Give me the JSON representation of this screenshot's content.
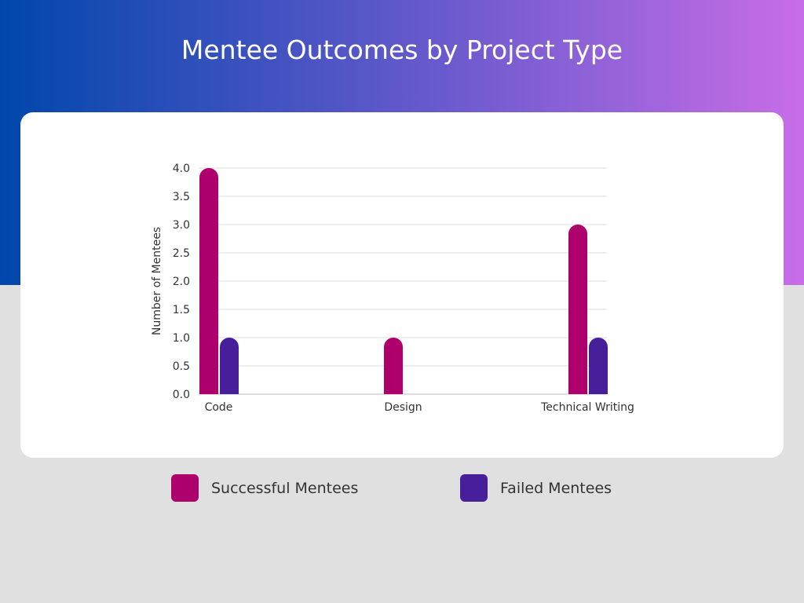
{
  "title": "Mentee Outcomes by Project Type",
  "chart_data": {
    "type": "bar",
    "title": "Mentee Outcomes by Project Type",
    "xlabel": "",
    "ylabel": "Number of Mentees",
    "categories": [
      "Code",
      "Design",
      "Technical Writing"
    ],
    "series": [
      {
        "name": "Successful Mentees",
        "values": [
          4,
          1,
          3
        ],
        "color": "#ad006d"
      },
      {
        "name": "Failed Mentees",
        "values": [
          1,
          0,
          1
        ],
        "color": "#471f9b"
      }
    ],
    "ylim": [
      0,
      4
    ],
    "yticks": [
      "0.0",
      "0.5",
      "1.0",
      "1.5",
      "2.0",
      "2.5",
      "3.0",
      "3.5",
      "4.0"
    ],
    "grid": true,
    "legend": "bottom"
  }
}
